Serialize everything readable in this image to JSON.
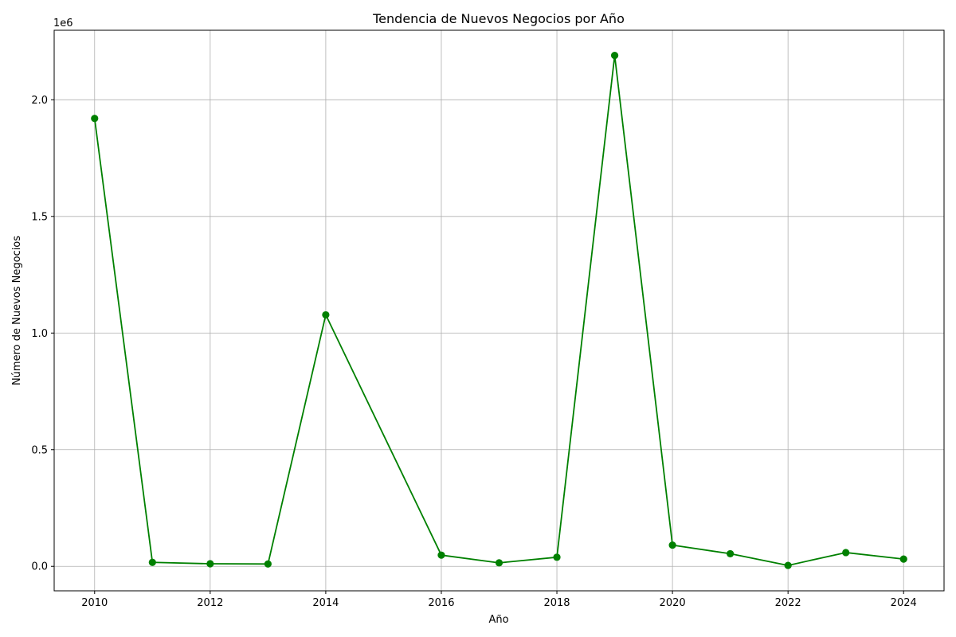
{
  "chart_data": {
    "type": "line",
    "title": "Tendencia de Nuevos Negocios por Año",
    "xlabel": "Año",
    "ylabel": "Número de Nuevos Negocios",
    "y_offset_label": "1e6",
    "x": [
      2010,
      2011,
      2012,
      2013,
      2014,
      2016,
      2017,
      2018,
      2019,
      2020,
      2021,
      2022,
      2023,
      2024
    ],
    "series": [
      {
        "values": [
          1920000,
          17000,
          11000,
          10000,
          1078000,
          48000,
          15000,
          39000,
          2190000,
          91000,
          54000,
          4000,
          59000,
          31000
        ],
        "color": "#008000"
      }
    ],
    "xlim": [
      2009.3,
      2024.7
    ],
    "ylim": [
      -105000,
      2298000
    ],
    "x_ticks": [
      2010,
      2012,
      2014,
      2016,
      2018,
      2020,
      2022,
      2024
    ],
    "x_tick_labels": [
      "2010",
      "2012",
      "2014",
      "2016",
      "2018",
      "2020",
      "2022",
      "2024"
    ],
    "y_ticks": [
      0,
      500000,
      1000000,
      1500000,
      2000000
    ],
    "y_tick_labels": [
      "0.0",
      "0.5",
      "1.0",
      "1.5",
      "2.0"
    ],
    "grid": true,
    "marker": "circle"
  }
}
